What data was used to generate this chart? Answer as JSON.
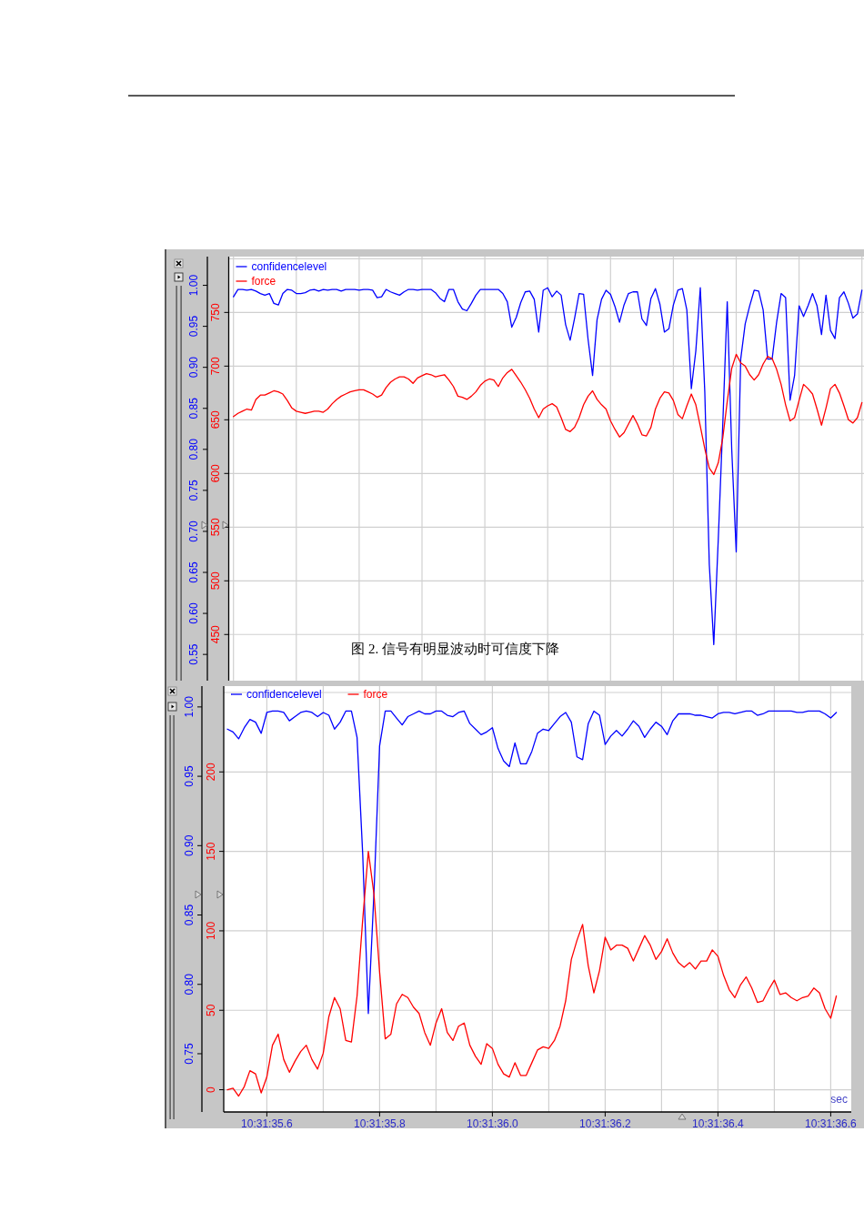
{
  "chart_data": [
    {
      "type": "line",
      "categories": [
        null,
        null,
        null,
        null,
        null,
        null,
        null,
        null,
        null,
        null,
        null,
        null,
        null,
        null,
        null,
        null,
        null,
        null,
        null,
        null,
        null,
        null,
        null,
        null,
        null,
        null,
        null,
        null,
        null,
        null,
        null,
        null,
        null,
        null,
        null,
        null,
        null,
        null,
        null,
        null,
        null,
        null,
        null,
        null,
        null,
        null,
        null,
        null,
        null,
        null,
        null,
        null,
        null,
        null,
        null,
        null,
        null,
        null,
        null,
        null,
        null,
        null,
        null,
        null,
        null,
        null,
        null,
        null,
        null,
        null,
        null,
        null,
        null,
        null,
        null,
        null,
        null,
        null,
        null,
        null,
        null,
        null,
        null,
        null,
        null,
        null,
        null,
        null,
        null,
        null,
        null,
        null,
        null,
        null,
        null,
        null,
        null,
        null,
        null,
        null,
        null,
        null,
        null,
        null,
        null,
        null,
        null,
        null,
        null,
        null,
        null,
        null,
        null,
        null,
        null,
        null,
        null,
        null,
        null,
        null,
        null,
        null,
        null,
        null,
        null,
        null,
        null,
        null,
        null,
        null,
        null,
        null,
        null,
        null,
        null,
        null,
        null,
        null,
        null,
        null,
        null
      ],
      "series": [
        {
          "name": "confidencelevel",
          "color": "#0000ff",
          "axis": "y2",
          "values": [
            0.986,
            0.995,
            0.995,
            0.994,
            0.995,
            0.993,
            0.99,
            0.988,
            0.99,
            0.978,
            0.976,
            0.99,
            0.995,
            0.994,
            0.99,
            0.99,
            0.991,
            0.994,
            0.995,
            0.993,
            0.995,
            0.994,
            0.995,
            0.995,
            0.993,
            0.995,
            0.995,
            0.995,
            0.994,
            0.995,
            0.995,
            0.994,
            0.985,
            0.986,
            0.995,
            0.992,
            0.99,
            0.988,
            0.992,
            0.995,
            0.995,
            0.994,
            0.995,
            0.995,
            0.995,
            0.991,
            0.984,
            0.98,
            0.995,
            0.995,
            0.98,
            0.971,
            0.969,
            0.978,
            0.988,
            0.995,
            0.995,
            0.995,
            0.995,
            0.995,
            0.99,
            0.98,
            0.949,
            0.961,
            0.979,
            0.992,
            0.993,
            0.983,
            0.943,
            0.994,
            0.997,
            0.986,
            0.993,
            0.988,
            0.952,
            0.933,
            0.96,
            0.99,
            0.989,
            0.934,
            0.89,
            0.958,
            0.983,
            0.994,
            0.989,
            0.974,
            0.955,
            0.976,
            0.99,
            0.992,
            0.992,
            0.959,
            0.951,
            0.984,
            0.996,
            0.977,
            0.943,
            0.947,
            0.976,
            0.994,
            0.996,
            0.97,
            0.874,
            0.92,
            0.997,
            0.87,
            0.66,
            0.562,
            0.69,
            0.83,
            0.98,
            0.8,
            0.675,
            0.91,
            0.953,
            0.975,
            0.994,
            0.993,
            0.97,
            0.91,
            0.91,
            0.955,
            0.99,
            0.985,
            0.86,
            0.89,
            0.975,
            0.962,
            0.975,
            0.99,
            0.975,
            0.94,
            0.988,
            0.945,
            0.935,
            0.985,
            0.992,
            0.978,
            0.96,
            0.965,
            0.994
          ]
        },
        {
          "name": "force",
          "color": "#ff0000",
          "values": [
            653,
            656,
            658,
            660,
            659,
            669,
            673,
            673,
            675,
            677,
            676,
            674,
            668,
            661,
            658,
            657,
            656,
            657,
            658,
            658,
            657,
            660,
            665,
            669,
            672,
            674,
            676,
            677,
            678,
            678,
            676,
            674,
            671,
            673,
            680,
            685,
            688,
            690,
            690,
            688,
            684,
            689,
            691,
            693,
            692,
            690,
            691,
            692,
            687,
            681,
            672,
            671,
            669,
            672,
            676,
            682,
            686,
            688,
            687,
            681,
            689,
            694,
            697,
            691,
            685,
            678,
            670,
            660,
            652,
            660,
            663,
            665,
            662,
            652,
            641,
            639,
            643,
            652,
            664,
            672,
            677,
            669,
            664,
            660,
            649,
            641,
            634,
            638,
            646,
            654,
            646,
            636,
            635,
            643,
            660,
            670,
            676,
            675,
            668,
            655,
            651,
            663,
            674,
            664,
            644,
            623,
            605,
            599,
            610,
            633,
            667,
            698,
            711,
            703,
            700,
            692,
            687,
            692,
            702,
            709,
            707,
            697,
            683,
            664,
            649,
            652,
            668,
            683,
            679,
            674,
            660,
            645,
            661,
            679,
            683,
            675,
            663,
            650,
            647,
            652,
            666
          ]
        }
      ],
      "ylim": [
        407,
        802
      ],
      "yticks": [
        450,
        500,
        550,
        600,
        650,
        700,
        750,
        {
          "value": 800,
          "label": null
        }
      ],
      "y2lim": [
        0.518,
        1.035
      ],
      "y2ticks": [
        0.55,
        {
          "value": 0.6,
          "label": "0.60"
        },
        0.65,
        {
          "value": 0.7,
          "label": "0.70"
        },
        0.75,
        {
          "value": 0.8,
          "label": "0.80"
        },
        0.85,
        {
          "value": 0.9,
          "label": "0.90"
        },
        0.95,
        {
          "value": 1,
          "label": "1.00"
        }
      ],
      "grid": true,
      "legend": "top left",
      "annotations": [
        "图 2. 信号有明显波动时可信度下降"
      ]
    },
    {
      "type": "line",
      "xlabel": "sec",
      "categories": [
        null,
        null,
        null,
        null,
        null,
        null,
        null,
        "10:31:35.6",
        null,
        null,
        null,
        null,
        null,
        null,
        null,
        null,
        null,
        null,
        null,
        null,
        null,
        null,
        null,
        null,
        null,
        null,
        null,
        "10:31:35.8",
        null,
        null,
        null,
        null,
        null,
        null,
        null,
        null,
        null,
        null,
        null,
        null,
        null,
        null,
        null,
        null,
        null,
        null,
        null,
        "10:31:36.0",
        null,
        null,
        null,
        null,
        null,
        null,
        null,
        null,
        null,
        null,
        null,
        null,
        null,
        null,
        null,
        null,
        null,
        null,
        null,
        "10:31:36.2",
        null,
        null,
        null,
        null,
        null,
        null,
        null,
        null,
        null,
        null,
        null,
        null,
        null,
        null,
        null,
        null,
        null,
        null,
        null,
        "10:31:36.4",
        null,
        null,
        null,
        null,
        null,
        null,
        null,
        null,
        null,
        null,
        null,
        null,
        null,
        null,
        null,
        null,
        null,
        null,
        null,
        "10:31:36.6",
        null
      ],
      "series": [
        {
          "name": "confidencelevel",
          "color": "#0000ff",
          "axis": "y2",
          "values": [
            0.984,
            0.982,
            0.977,
            0.985,
            0.991,
            0.989,
            0.981,
            0.996,
            0.997,
            0.997,
            0.996,
            0.99,
            0.993,
            0.996,
            0.997,
            0.996,
            0.993,
            0.996,
            0.994,
            0.984,
            0.989,
            0.997,
            0.997,
            0.978,
            0.894,
            0.779,
            0.866,
            0.972,
            0.997,
            0.997,
            0.992,
            0.987,
            0.993,
            0.995,
            0.997,
            0.995,
            0.995,
            0.997,
            0.997,
            0.994,
            0.993,
            0.996,
            0.997,
            0.988,
            0.984,
            0.98,
            0.982,
            0.985,
            0.97,
            0.961,
            0.957,
            0.974,
            0.959,
            0.959,
            0.968,
            0.981,
            0.984,
            0.983,
            0.988,
            0.993,
            0.996,
            0.989,
            0.964,
            0.962,
            0.988,
            0.997,
            0.994,
            0.973,
            0.979,
            0.983,
            0.979,
            0.984,
            0.99,
            0.986,
            0.978,
            0.984,
            0.989,
            0.986,
            0.98,
            0.99,
            0.995,
            0.995,
            0.995,
            0.994,
            0.994,
            0.993,
            0.992,
            0.995,
            0.996,
            0.996,
            0.995,
            0.996,
            0.997,
            0.997,
            0.994,
            0.995,
            0.997,
            0.997,
            0.997,
            0.997,
            0.997,
            0.996,
            0.996,
            0.997,
            0.997,
            0.997,
            0.995,
            0.992,
            0.996
          ]
        },
        {
          "name": "force",
          "color": "#ff0000",
          "values": [
            0,
            1,
            -4,
            2,
            12,
            10,
            -2,
            8,
            28,
            35,
            19,
            11,
            18,
            24,
            28,
            19,
            13,
            23,
            46,
            58,
            51,
            31,
            30,
            59,
            107,
            150,
            123,
            74,
            32,
            35,
            54,
            60,
            58,
            52,
            48,
            36,
            28,
            42,
            51,
            36,
            31,
            40,
            42,
            28,
            21,
            16,
            29,
            26,
            16,
            10,
            8,
            17,
            9,
            9,
            17,
            25,
            27,
            26,
            31,
            40,
            56,
            82,
            94,
            104,
            78,
            61,
            75,
            96,
            88,
            91,
            91,
            89,
            81,
            89,
            97,
            91,
            82,
            87,
            95,
            86,
            80,
            77,
            80,
            76,
            81,
            81,
            88,
            84,
            72,
            63,
            58,
            66,
            71,
            64,
            55,
            56,
            63,
            69,
            60,
            61,
            58,
            56,
            58,
            59,
            64,
            61,
            51,
            45,
            59
          ]
        }
      ],
      "ylim": [
        -14,
        254
      ],
      "yticks": [
        0,
        50,
        100,
        150,
        200,
        {
          "value": 250,
          "label": null
        }
      ],
      "y2lim": [
        0.708,
        1.015
      ],
      "y2ticks": [
        0.75,
        {
          "value": 0.8,
          "label": "0.80"
        },
        0.85,
        {
          "value": 0.9,
          "label": "0.90"
        },
        0.95,
        {
          "value": 1,
          "label": "1.00"
        }
      ],
      "grid": true,
      "legend": "top left"
    }
  ]
}
